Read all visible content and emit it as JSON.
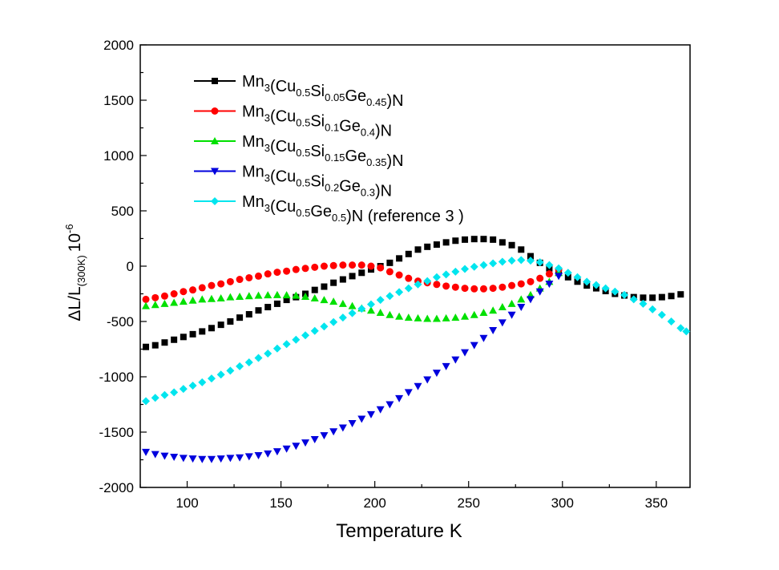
{
  "chart_data": {
    "type": "scatter",
    "xlabel": "Temperature K",
    "ylabel": {
      "prefix": "ΔL/L",
      "subscript": "(300K)",
      "factor_base": "10",
      "factor_exp": "-6"
    },
    "xlim": [
      75,
      368
    ],
    "ylim": [
      -2000,
      2000
    ],
    "xticks": [
      100,
      150,
      200,
      250,
      300,
      350
    ],
    "yticks": [
      -2000,
      -1500,
      -1000,
      -500,
      0,
      500,
      1000,
      1500,
      2000
    ],
    "legend_position": "top-left",
    "grid": false,
    "series": [
      {
        "name": "Mn3(Cu0.5Si0.05Ge0.45)N",
        "name_parts": [
          [
            "Mn",
            ""
          ],
          [
            "3",
            "sub"
          ],
          [
            "(Cu",
            ""
          ],
          [
            "0.5",
            "sub"
          ],
          [
            "Si",
            ""
          ],
          [
            "0.05",
            "sub"
          ],
          [
            "Ge",
            ""
          ],
          [
            "0.45",
            "sub"
          ],
          [
            ")N",
            ""
          ]
        ],
        "color": "#000000",
        "marker": "square",
        "x": [
          78,
          83,
          88,
          93,
          98,
          103,
          108,
          113,
          118,
          123,
          128,
          133,
          138,
          143,
          148,
          153,
          158,
          163,
          168,
          173,
          178,
          183,
          188,
          193,
          198,
          203,
          208,
          213,
          218,
          223,
          228,
          233,
          238,
          243,
          248,
          253,
          258,
          263,
          268,
          273,
          278,
          283,
          288,
          293,
          298,
          303,
          308,
          313,
          318,
          323,
          328,
          333,
          338,
          343,
          348,
          353,
          358,
          363
        ],
        "y": [
          -730,
          -715,
          -690,
          -665,
          -640,
          -615,
          -590,
          -560,
          -530,
          -500,
          -465,
          -435,
          -400,
          -370,
          -340,
          -305,
          -280,
          -250,
          -215,
          -185,
          -150,
          -120,
          -90,
          -60,
          -30,
          0,
          30,
          70,
          110,
          150,
          175,
          195,
          215,
          230,
          240,
          245,
          245,
          240,
          215,
          190,
          150,
          90,
          30,
          -20,
          -60,
          -100,
          -140,
          -175,
          -200,
          -225,
          -250,
          -265,
          -280,
          -285,
          -285,
          -280,
          -270,
          -255
        ]
      },
      {
        "name": "Mn3(Cu0.5Si0.1Ge0.4)N",
        "name_parts": [
          [
            "Mn",
            ""
          ],
          [
            "3",
            "sub"
          ],
          [
            "(Cu",
            ""
          ],
          [
            "0.5",
            "sub"
          ],
          [
            "Si",
            ""
          ],
          [
            "0.1",
            "sub"
          ],
          [
            "Ge",
            ""
          ],
          [
            "0.4",
            "sub"
          ],
          [
            ")N",
            ""
          ]
        ],
        "color": "#ff0000",
        "marker": "circle",
        "x": [
          78,
          83,
          88,
          93,
          98,
          103,
          108,
          113,
          118,
          123,
          128,
          133,
          138,
          143,
          148,
          153,
          158,
          163,
          168,
          173,
          178,
          183,
          188,
          193,
          198,
          203,
          208,
          213,
          218,
          223,
          228,
          233,
          238,
          243,
          248,
          253,
          258,
          263,
          268,
          273,
          278,
          283,
          288,
          293,
          298
        ],
        "y": [
          -300,
          -285,
          -270,
          -250,
          -230,
          -215,
          -195,
          -175,
          -160,
          -140,
          -120,
          -105,
          -90,
          -70,
          -55,
          -45,
          -30,
          -20,
          -10,
          0,
          5,
          10,
          10,
          10,
          0,
          -15,
          -50,
          -80,
          -110,
          -135,
          -150,
          -165,
          -180,
          -190,
          -200,
          -205,
          -205,
          -200,
          -190,
          -175,
          -160,
          -140,
          -110,
          -70,
          -30
        ]
      },
      {
        "name": "Mn3(Cu0.5Si0.15Ge0.35)N",
        "name_parts": [
          [
            "Mn",
            ""
          ],
          [
            "3",
            "sub"
          ],
          [
            "(Cu",
            ""
          ],
          [
            "0.5",
            "sub"
          ],
          [
            "Si",
            ""
          ],
          [
            "0.15",
            "sub"
          ],
          [
            "Ge",
            ""
          ],
          [
            "0.35",
            "sub"
          ],
          [
            ")N",
            ""
          ]
        ],
        "color": "#00e000",
        "marker": "triangle-up",
        "x": [
          78,
          83,
          88,
          93,
          98,
          103,
          108,
          113,
          118,
          123,
          128,
          133,
          138,
          143,
          148,
          153,
          158,
          163,
          168,
          173,
          178,
          183,
          188,
          193,
          198,
          203,
          208,
          213,
          218,
          223,
          228,
          233,
          238,
          243,
          248,
          253,
          258,
          263,
          268,
          273,
          278,
          283,
          288,
          293,
          298
        ],
        "y": [
          -360,
          -350,
          -340,
          -330,
          -320,
          -310,
          -300,
          -295,
          -290,
          -280,
          -275,
          -270,
          -265,
          -262,
          -260,
          -262,
          -265,
          -275,
          -290,
          -305,
          -320,
          -340,
          -360,
          -380,
          -400,
          -420,
          -440,
          -455,
          -465,
          -470,
          -475,
          -475,
          -470,
          -465,
          -455,
          -440,
          -420,
          -400,
          -370,
          -340,
          -300,
          -260,
          -200,
          -140,
          -60
        ]
      },
      {
        "name": "Mn3(Cu0.5Si0.2Ge0.3)N",
        "name_parts": [
          [
            "Mn",
            ""
          ],
          [
            "3",
            "sub"
          ],
          [
            "(Cu",
            ""
          ],
          [
            "0.5",
            "sub"
          ],
          [
            "Si",
            ""
          ],
          [
            "0.2",
            "sub"
          ],
          [
            "Ge",
            ""
          ],
          [
            "0.3",
            "sub"
          ],
          [
            ")N",
            ""
          ]
        ],
        "color": "#0000dd",
        "marker": "triangle-down",
        "x": [
          78,
          83,
          88,
          93,
          98,
          103,
          108,
          113,
          118,
          123,
          128,
          133,
          138,
          143,
          148,
          153,
          158,
          163,
          168,
          173,
          178,
          183,
          188,
          193,
          198,
          203,
          208,
          213,
          218,
          223,
          228,
          233,
          238,
          243,
          248,
          253,
          258,
          263,
          268,
          273,
          278,
          283,
          288,
          293,
          298
        ],
        "y": [
          -1680,
          -1700,
          -1715,
          -1725,
          -1735,
          -1740,
          -1745,
          -1745,
          -1740,
          -1735,
          -1730,
          -1720,
          -1710,
          -1695,
          -1675,
          -1650,
          -1625,
          -1595,
          -1565,
          -1530,
          -1495,
          -1460,
          -1420,
          -1380,
          -1340,
          -1295,
          -1250,
          -1195,
          -1140,
          -1085,
          -1025,
          -965,
          -905,
          -845,
          -780,
          -715,
          -650,
          -580,
          -510,
          -440,
          -370,
          -300,
          -230,
          -160,
          -90
        ]
      },
      {
        "name": "Mn3(Cu0.5Ge0.5)N (reference 3 )",
        "name_parts": [
          [
            "Mn",
            ""
          ],
          [
            "3",
            "sub"
          ],
          [
            "(Cu",
            ""
          ],
          [
            "0.5",
            "sub"
          ],
          [
            "Ge",
            ""
          ],
          [
            "0.5",
            "sub"
          ],
          [
            ")N (reference 3 )",
            ""
          ]
        ],
        "color": "#00e5ee",
        "marker": "diamond",
        "x": [
          78,
          83,
          88,
          93,
          98,
          103,
          108,
          113,
          118,
          123,
          128,
          133,
          138,
          143,
          148,
          153,
          158,
          163,
          168,
          173,
          178,
          183,
          188,
          193,
          198,
          203,
          208,
          213,
          218,
          223,
          228,
          233,
          238,
          243,
          248,
          253,
          258,
          263,
          268,
          273,
          278,
          283,
          288,
          293,
          298,
          303,
          308,
          313,
          318,
          323,
          328,
          333,
          338,
          343,
          348,
          353,
          358,
          363,
          366
        ],
        "y": [
          -1220,
          -1190,
          -1165,
          -1140,
          -1110,
          -1080,
          -1050,
          -1015,
          -980,
          -945,
          -905,
          -870,
          -830,
          -790,
          -745,
          -705,
          -665,
          -625,
          -585,
          -545,
          -505,
          -465,
          -425,
          -385,
          -345,
          -305,
          -270,
          -235,
          -200,
          -165,
          -135,
          -100,
          -75,
          -50,
          -25,
          -5,
          10,
          25,
          40,
          50,
          55,
          50,
          35,
          10,
          -20,
          -60,
          -100,
          -140,
          -170,
          -200,
          -230,
          -260,
          -300,
          -340,
          -390,
          -440,
          -500,
          -560,
          -590
        ]
      }
    ]
  }
}
